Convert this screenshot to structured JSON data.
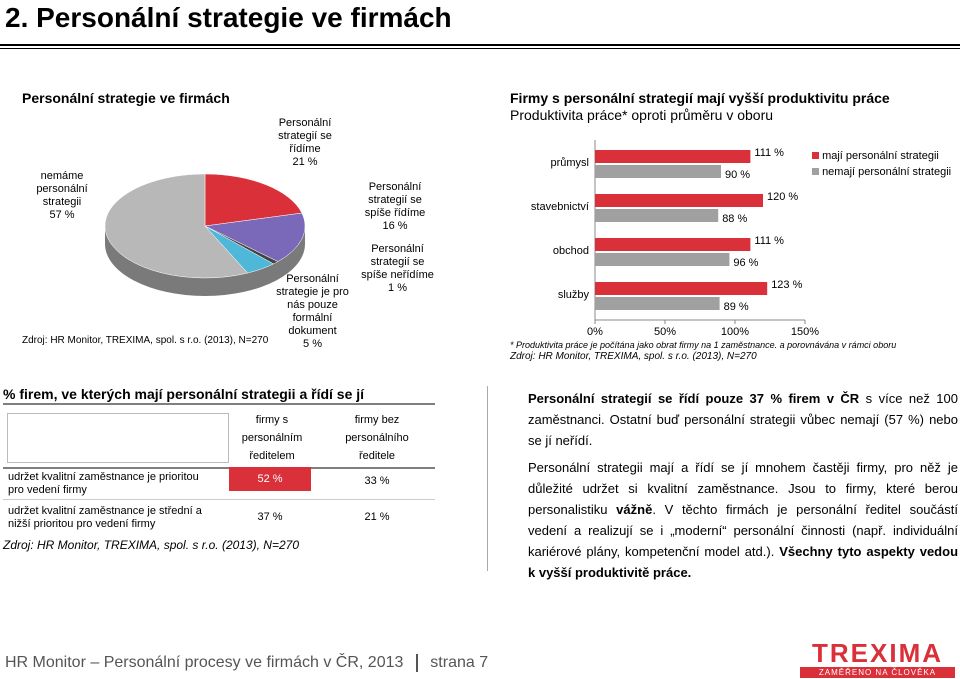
{
  "header": {
    "title": "2. Personální strategie ve firmách"
  },
  "pie": {
    "title": "Personální strategie ve firmách",
    "source": "Zdroj: HR Monitor, TREXIMA, spol. s r.o.  (2013), N=270",
    "labels": {
      "nemame": [
        "nemáme",
        "personální",
        "strategii",
        "57 %"
      ],
      "ridime": [
        "Personální",
        "strategií se",
        "řídíme",
        "21 %"
      ],
      "spise_ridime": [
        "Personální",
        "strategií se",
        "spíše řídíme",
        "16 %"
      ],
      "spise_neridime": [
        "Personální",
        "strategií se",
        "spíše neřídíme",
        "1 %"
      ],
      "formalni": [
        "Personální",
        "strategie je pro",
        "nás pouze",
        "formální",
        "dokument",
        "5 %"
      ]
    },
    "colors": {
      "nemame": "#b8b8b8",
      "ridime": "#d9303a",
      "spise_ridime": "#7a68b8",
      "spise_neridime": "#444444",
      "formalni": "#4fb8d8"
    }
  },
  "chart_data": [
    {
      "type": "pie",
      "title": "Personální strategie ve firmách",
      "categories": [
        "nemáme personální strategii",
        "Personální strategií se řídíme",
        "Personální strategií se spíše řídíme",
        "Personální strategií se spíše neřídíme",
        "Personální strategie je pro nás pouze formální dokument"
      ],
      "values": [
        57,
        21,
        16,
        1,
        5
      ]
    },
    {
      "type": "bar",
      "orientation": "horizontal",
      "title": "Firmy s personální strategií mají vyšší produktivitu práce",
      "subtitle": "Produktivita práce* oproti průměru v oboru",
      "categories": [
        "průmysl",
        "stavebnictví",
        "obchod",
        "služby"
      ],
      "series": [
        {
          "name": "mají personální strategii",
          "values": [
            111,
            120,
            111,
            123
          ],
          "labels": [
            "111 %",
            "120 %",
            "111 %",
            "123 %"
          ],
          "color": "#d9303a"
        },
        {
          "name": "nemají personální strategii",
          "values": [
            90,
            88,
            96,
            89
          ],
          "labels": [
            "90 %",
            "88 %",
            "96 %",
            "89 %"
          ],
          "color": "#a0a0a0"
        }
      ],
      "xlim": [
        0,
        150
      ],
      "xticks": [
        "0%",
        "50%",
        "100%",
        "150%"
      ],
      "legend": "top-right",
      "note": "* Produktivita práce je počítána jako obrat firmy na 1 zaměstnance. a porovnávána v rámci oboru",
      "source": "Zdroj: HR Monitor, TREXIMA, spol. s r.o.  (2013), N=270"
    }
  ],
  "table": {
    "title": "% firem, ve kterých mají personální strategii a řídí se jí",
    "col1": [
      "firmy s",
      "personálním",
      "ředitelem"
    ],
    "col2": [
      "firmy bez",
      "personálního",
      "ředitele"
    ],
    "rows": [
      {
        "label": [
          "udržet kvalitní zaměstnance je prioritou",
          "pro vedení firmy"
        ],
        "v1": "52 %",
        "v2": "33 %"
      },
      {
        "label": [
          "udržet kvalitní zaměstnance je střední a",
          "nižší prioritou pro vedení firmy"
        ],
        "v1": "37 %",
        "v2": "21 %"
      }
    ],
    "source": "Zdroj: HR Monitor, TREXIMA, spol. s r.o. (2013), N=270"
  },
  "text": {
    "p1_bold": "Personální strategií se řídí pouze 37 % firem v ČR",
    "p1_rest": " s více než 100 zaměstnanci. Ostatní buď personální strategii vůbec nemají (57 %) nebo se jí neřídí.",
    "p2_a": "Personální strategii mají a řídí se jí mnohem častěji firmy, pro něž je důležité udržet si kvalitní zaměstnance. Jsou to firmy, které berou personalistiku ",
    "p2_vazne": "vážně",
    "p2_b": ". V těchto firmách je personální ředitel součástí vedení a realizují se i „moderní“ personální činnosti (např. individuální kariérové plány, kompetenční model atd.). ",
    "p2_bold": "Všechny tyto aspekty vedou k vyšší produktivitě práce."
  },
  "footer": {
    "left": "HR Monitor – Personální procesy ve firmách v ČR, 2013",
    "page": "strana 7",
    "logo": "TREXIMA",
    "tagline": "ZAMĚŘENO NA ČLOVĚKA",
    "logo_color": "#d9303a"
  }
}
